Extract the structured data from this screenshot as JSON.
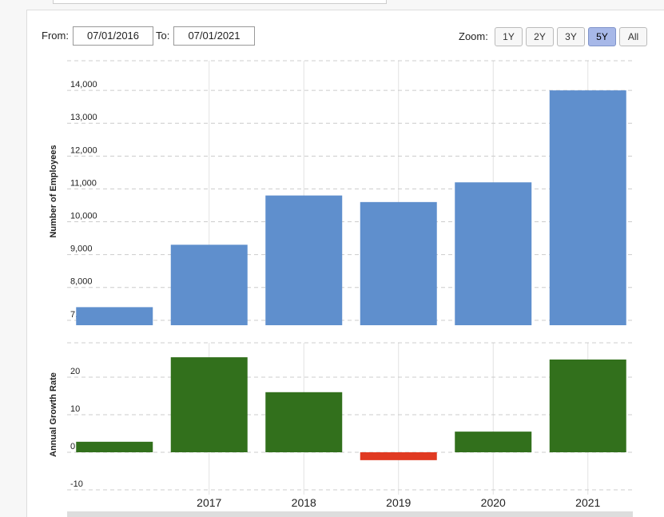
{
  "controls": {
    "from_label": "From:",
    "from_value": "07/01/2016",
    "to_label": "To:",
    "to_value": "07/01/2021",
    "zoom_label": "Zoom:",
    "zoom_buttons": [
      "1Y",
      "2Y",
      "3Y",
      "5Y",
      "All"
    ]
  },
  "chart_data": [
    {
      "type": "bar",
      "y_label": "Number of Employees",
      "categories": [
        null,
        "2017",
        "2018",
        "2019",
        "2020",
        "2021"
      ],
      "values": [
        7400,
        9300,
        10800,
        10600,
        11200,
        14000
      ],
      "color": "#5f8fcd",
      "ylim": [
        6850,
        15000
      ],
      "yticks": [
        {
          "value": 7000,
          "label": "7,000"
        },
        {
          "value": 8000,
          "label": "8,000"
        },
        {
          "value": 9000,
          "label": "9,000"
        },
        {
          "value": 10000,
          "label": "10,000"
        },
        {
          "value": 11000,
          "label": "11,000"
        },
        {
          "value": 12000,
          "label": "12,000"
        },
        {
          "value": 13000,
          "label": "13,000"
        },
        {
          "value": 14000,
          "label": "14,000"
        }
      ],
      "grid": true
    },
    {
      "type": "bar",
      "y_label": "Annual Growth Rate",
      "categories": [
        null,
        "2017",
        "2018",
        "2019",
        "2020",
        "2021"
      ],
      "values": [
        2.8,
        25.3,
        16,
        -2.1,
        5.5,
        24.7
      ],
      "color": "#32701c",
      "negative_color": "#e03a22",
      "ylim": [
        -10,
        30
      ],
      "yticks": [
        -10,
        0,
        10,
        20
      ],
      "grid": true
    }
  ]
}
